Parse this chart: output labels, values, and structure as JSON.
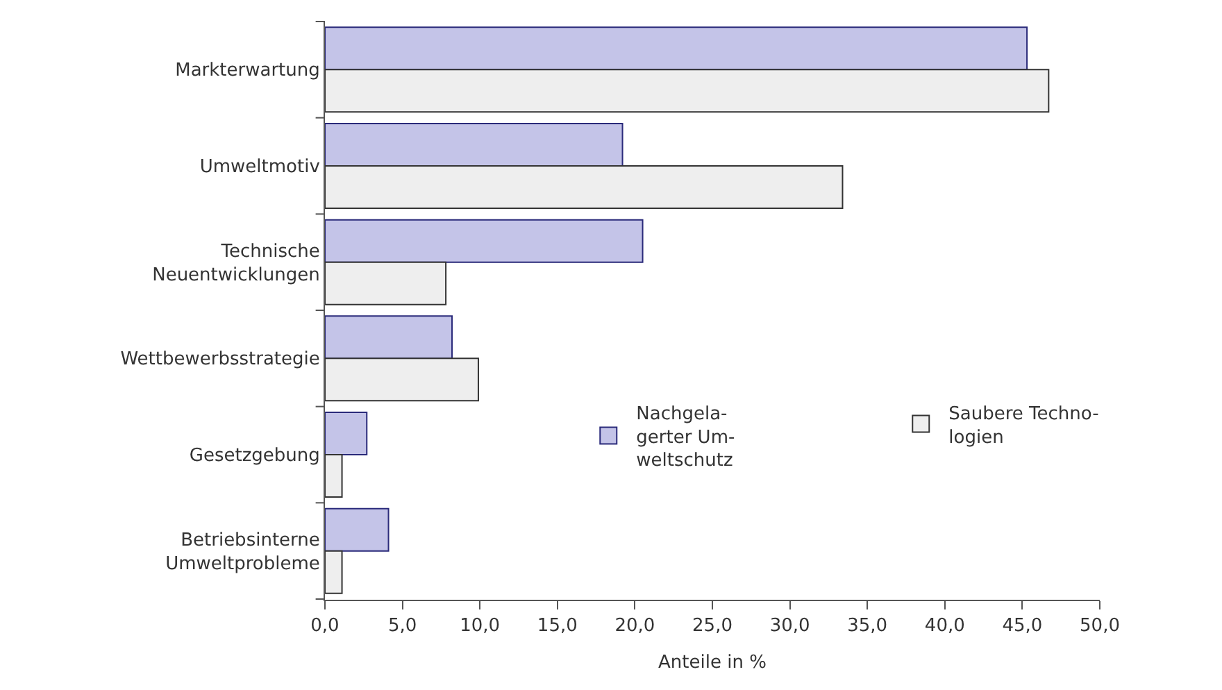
{
  "chart_data": {
    "type": "bar",
    "orientation": "horizontal",
    "xlabel": "Anteile in %",
    "categories": [
      "Markterwartung",
      "Umweltmotiv",
      "Technische\nNeuentwicklungen",
      "Wettbewerbsstrategie",
      "Gesetzgebung",
      "Betriebsinterne\nUmweltprobleme"
    ],
    "series": [
      {
        "name": "Nachgela-\ngerter Um-\nweltschutz",
        "color": "#c4c4e8",
        "values": [
          45.3,
          19.2,
          20.5,
          8.2,
          2.7,
          4.1
        ]
      },
      {
        "name": "Saubere Techno-\nlogien",
        "color": "#eeeeee",
        "values": [
          46.7,
          33.4,
          7.8,
          9.9,
          1.1,
          1.1
        ]
      }
    ],
    "xlim": [
      0,
      50
    ],
    "xticks": [
      {
        "value": 0,
        "label": "0,0"
      },
      {
        "value": 5,
        "label": "5,0"
      },
      {
        "value": 10,
        "label": "10,0"
      },
      {
        "value": 15,
        "label": "15,0"
      },
      {
        "value": 20,
        "label": "20,0"
      },
      {
        "value": 25,
        "label": "25,0"
      },
      {
        "value": 30,
        "label": "30,0"
      },
      {
        "value": 35,
        "label": "35,0"
      },
      {
        "value": 40,
        "label": "40,0"
      },
      {
        "value": 45,
        "label": "45,0"
      },
      {
        "value": 50,
        "label": "50,0"
      }
    ],
    "grid": false,
    "legend": "right"
  }
}
